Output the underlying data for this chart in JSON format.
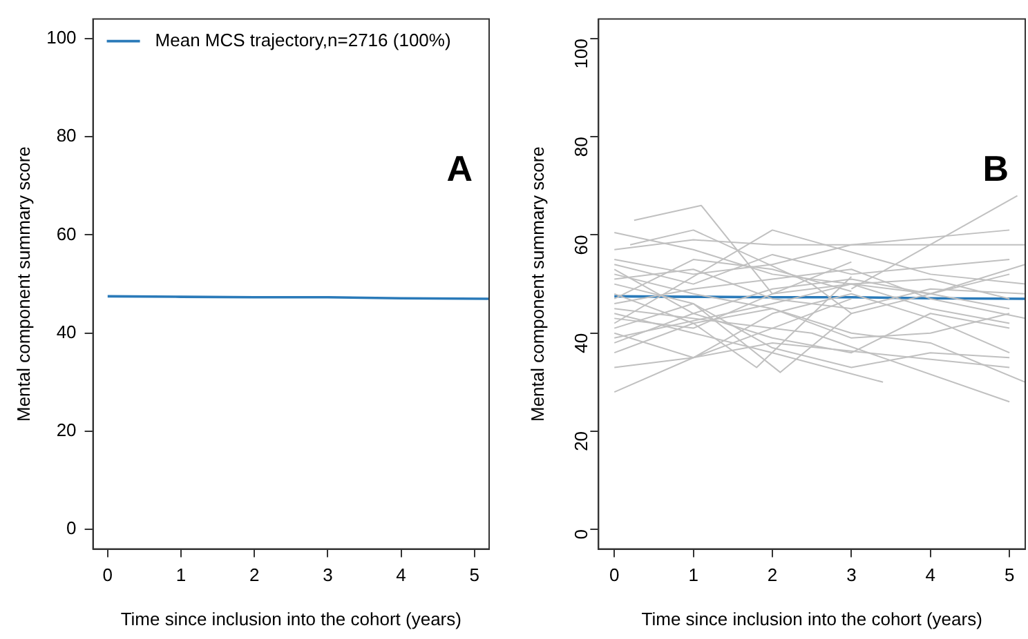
{
  "chart_data": [
    {
      "type": "line",
      "xlabel": "Time since inclusion into the cohort (years)",
      "ylabel": "Mental component summary score",
      "annotations": [
        "A"
      ],
      "legend": "top left",
      "grid": false,
      "xlim": [
        -0.2,
        5.2
      ],
      "xticks": [
        0,
        1,
        2,
        3,
        4,
        5
      ],
      "ylim": [
        -4,
        104
      ],
      "yticks": [
        0,
        20,
        40,
        60,
        80,
        100
      ],
      "series": [
        {
          "name": "Mean MCS trajectory,n=2716 (100%)",
          "color": "#2a7ab9",
          "x": [
            0,
            1,
            2,
            3,
            4,
            5.2
          ],
          "values": [
            47.5,
            47.4,
            47.3,
            47.3,
            47.1,
            47.0
          ]
        }
      ]
    },
    {
      "type": "line",
      "xlabel": "Time since inclusion into the cohort (years)",
      "ylabel": "Mental component summary score",
      "annotations": [
        "B"
      ],
      "grid": false,
      "xlim": [
        -0.2,
        5.2
      ],
      "xticks": [
        0,
        1,
        2,
        3,
        4,
        5
      ],
      "ylim": [
        -4,
        104
      ],
      "yticks": [
        0,
        20,
        40,
        60,
        80,
        100
      ],
      "series": [
        {
          "color": "#c0c0c0",
          "x": [
            0,
            1,
            2,
            3
          ],
          "values": [
            28,
            35,
            41,
            47
          ]
        },
        {
          "color": "#c0c0c0",
          "x": [
            0,
            1,
            2,
            5
          ],
          "values": [
            33,
            35,
            38,
            33
          ]
        },
        {
          "color": "#c0c0c0",
          "x": [
            0,
            1,
            2,
            3,
            4,
            5
          ],
          "values": [
            60.5,
            57,
            52,
            50,
            48,
            45
          ]
        },
        {
          "color": "#c0c0c0",
          "x": [
            0.25,
            1.1,
            2,
            3
          ],
          "values": [
            63,
            66,
            48,
            54.5
          ]
        },
        {
          "color": "#c0c0c0",
          "x": [
            3,
            5.1
          ],
          "values": [
            49,
            68
          ]
        },
        {
          "color": "#c0c0c0",
          "x": [
            0,
            1,
            2,
            3,
            5
          ],
          "values": [
            55,
            52,
            54,
            58,
            61
          ]
        },
        {
          "color": "#c0c0c0",
          "x": [
            0,
            2.5,
            5
          ],
          "values": [
            45,
            40,
            26
          ]
        },
        {
          "color": "#c0c0c0",
          "x": [
            0,
            1,
            2,
            3.4
          ],
          "values": [
            44,
            40,
            36,
            30
          ]
        },
        {
          "color": "#c0c0c0",
          "x": [
            0,
            1,
            2.1,
            3
          ],
          "values": [
            50,
            46,
            32,
            44
          ]
        },
        {
          "color": "#c0c0c0",
          "x": [
            0,
            1,
            1.8,
            3
          ],
          "values": [
            48,
            42,
            33,
            51.5
          ]
        },
        {
          "color": "#c0c0c0",
          "x": [
            0,
            1,
            2,
            3,
            4,
            5.2
          ],
          "values": [
            57,
            59,
            58,
            58,
            58,
            58
          ]
        },
        {
          "color": "#c0c0c0",
          "x": [
            0,
            1,
            2,
            3,
            4,
            5
          ],
          "values": [
            40,
            35,
            44,
            48,
            43,
            36
          ]
        },
        {
          "color": "#c0c0c0",
          "x": [
            0,
            1,
            2,
            3,
            4,
            5.2
          ],
          "values": [
            52,
            48,
            45,
            40,
            38,
            30
          ]
        },
        {
          "color": "#c0c0c0",
          "x": [
            0,
            2,
            4,
            5.2
          ],
          "values": [
            42,
            61,
            52,
            50
          ]
        },
        {
          "color": "#c0c0c0",
          "x": [
            0,
            1,
            2,
            3,
            4,
            5
          ],
          "values": [
            38,
            44,
            39,
            36,
            44,
            41
          ]
        },
        {
          "color": "#c0c0c0",
          "x": [
            0,
            1,
            2,
            3,
            5
          ],
          "values": [
            54,
            50,
            56,
            52,
            55
          ]
        },
        {
          "color": "#c0c0c0",
          "x": [
            0,
            1,
            2,
            3,
            4,
            5.2
          ],
          "values": [
            46,
            49,
            51,
            53,
            47,
            43
          ]
        },
        {
          "color": "#c0c0c0",
          "x": [
            0,
            1,
            2,
            3,
            4,
            5
          ],
          "values": [
            41,
            46,
            37,
            33,
            36,
            35
          ]
        },
        {
          "color": "#c0c0c0",
          "x": [
            0.2,
            1,
            2.5,
            3,
            5
          ],
          "values": [
            58,
            61,
            50,
            44,
            52
          ]
        },
        {
          "color": "#c0c0c0",
          "x": [
            0,
            1,
            2,
            3,
            4,
            5.2
          ],
          "values": [
            51,
            53,
            47,
            45,
            49,
            48
          ]
        },
        {
          "color": "#c0c0c0",
          "x": [
            0,
            1,
            2,
            3,
            4,
            5
          ],
          "values": [
            43,
            41,
            48,
            50,
            45,
            42
          ]
        },
        {
          "color": "#c0c0c0",
          "x": [
            0,
            1,
            2,
            3
          ],
          "values": [
            47,
            55,
            53,
            48.5
          ]
        },
        {
          "color": "#c0c0c0",
          "x": [
            0,
            1,
            2,
            3,
            4,
            5
          ],
          "values": [
            36,
            42,
            45,
            39,
            40,
            44
          ]
        },
        {
          "color": "#c0c0c0",
          "x": [
            0,
            1,
            2,
            3,
            4,
            5.2
          ],
          "values": [
            53,
            44,
            49,
            51,
            48,
            54
          ]
        },
        {
          "color": "#c0c0c0",
          "x": [
            0,
            2,
            3,
            4,
            5
          ],
          "values": [
            39,
            46,
            50,
            51,
            47
          ]
        },
        {
          "color": "#2a7ab9",
          "x": [
            0,
            1,
            2,
            3,
            4,
            5.2
          ],
          "values": [
            47.5,
            47.4,
            47.3,
            47.3,
            47.1,
            47.0
          ]
        }
      ]
    }
  ]
}
